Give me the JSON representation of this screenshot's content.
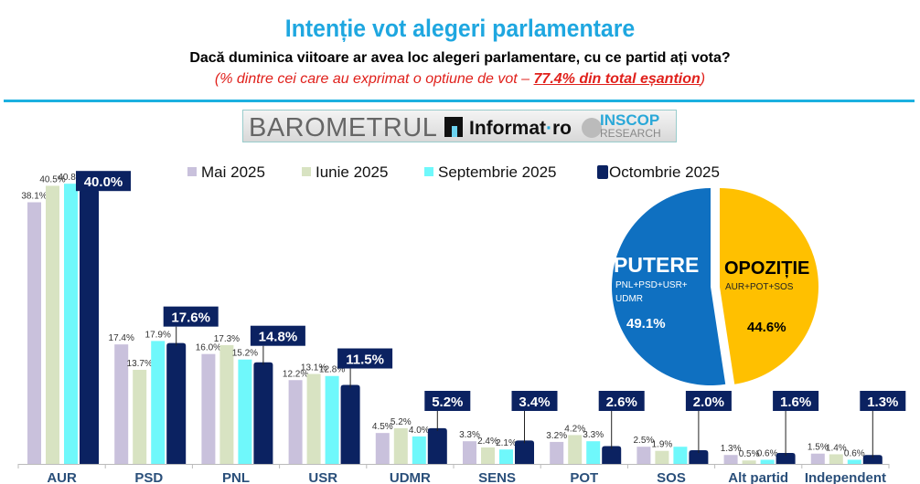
{
  "header": {
    "title": "Intenție vot alegeri parlamentare",
    "subtitle": "Dacă duminica viitoare ar avea loc alegeri parlamentare, cu ce partid ați vota?",
    "note_prefix": "(% dintre cei care au exprimat o optiune de vot – ",
    "note_highlight": "77.4% din total eșantion",
    "note_suffix": ")"
  },
  "banner": {
    "barometer": "BAROMETRUL",
    "informat": "Informat",
    "informat_dot": "·",
    "informat_ro": "ro",
    "inscop": "INSCOP",
    "research": "RESEARCH"
  },
  "colors": {
    "mai": "#c9c1dc",
    "iunie": "#d8e3c2",
    "septembrie": "#6ff8fb",
    "octombrie": "#0b2261",
    "putere": "#0f70c1",
    "opozitie": "#ffc000",
    "title": "#1fa7e0"
  },
  "chart_data": [
    {
      "type": "bar",
      "title": "Intenție vot alegeri parlamentare",
      "xlabel": "",
      "ylabel": "",
      "ylim": [
        0,
        42
      ],
      "grid": false,
      "legend_position": "top",
      "categories": [
        "AUR",
        "PSD",
        "PNL",
        "USR",
        "UDMR",
        "SENS",
        "POT",
        "SOS",
        "Alt partid",
        "Independent"
      ],
      "series": [
        {
          "name": "Mai 2025",
          "values": [
            38.1,
            17.4,
            16.0,
            12.2,
            4.5,
            3.3,
            3.2,
            2.5,
            1.3,
            1.5
          ],
          "labels": [
            "38.1%",
            "17.4%",
            "16.0%",
            "12.2%",
            "4.5%",
            "3.3%",
            "3.2%",
            "2.5%",
            "1.3%",
            "1.5%"
          ]
        },
        {
          "name": "Iunie 2025",
          "values": [
            40.5,
            13.7,
            17.3,
            13.1,
            5.2,
            2.4,
            4.2,
            1.9,
            0.5,
            1.4
          ],
          "labels": [
            "40.5%",
            "13.7%",
            "17.3%",
            "13.1%",
            "5.2%",
            "2.4%",
            "4.2%",
            "1.9%",
            "0.5%",
            "1.4%"
          ]
        },
        {
          "name": "Septembrie 2025",
          "values": [
            40.8,
            17.9,
            15.2,
            12.8,
            4.0,
            2.1,
            3.3,
            2.5,
            0.6,
            0.6
          ],
          "labels": [
            "40.8%",
            "17.9%",
            "15.2%",
            "12.8%",
            "4.0%",
            "2.1%",
            "3.3%",
            "",
            "0.6%",
            "0.6%"
          ]
        },
        {
          "name": "Octombrie 2025",
          "values": [
            40.0,
            17.6,
            14.8,
            11.5,
            5.2,
            3.4,
            2.6,
            2.0,
            1.6,
            1.3
          ],
          "labels": [
            "40.0%",
            "17.6%",
            "14.8%",
            "11.5%",
            "5.2%",
            "3.4%",
            "2.6%",
            "2.0%",
            "1.6%",
            "1.3%"
          ]
        }
      ]
    },
    {
      "type": "pie",
      "slices": [
        {
          "name": "PUTERE",
          "detail": "PNL+PSD+USR+ UDMR",
          "value": 49.1,
          "label": "49.1%"
        },
        {
          "name": "OPOZIȚIE",
          "detail": "AUR+POT+SOS",
          "value": 44.6,
          "label": "44.6%"
        }
      ]
    }
  ],
  "pie": {
    "putere_title": "PUTERE",
    "putere_detail_1": "PNL+PSD+USR+",
    "putere_detail_2": "UDMR",
    "putere_value": "49.1%",
    "opozitie_title": "OPOZIȚIE",
    "opozitie_detail": "AUR+POT+SOS",
    "opozitie_value": "44.6%"
  }
}
